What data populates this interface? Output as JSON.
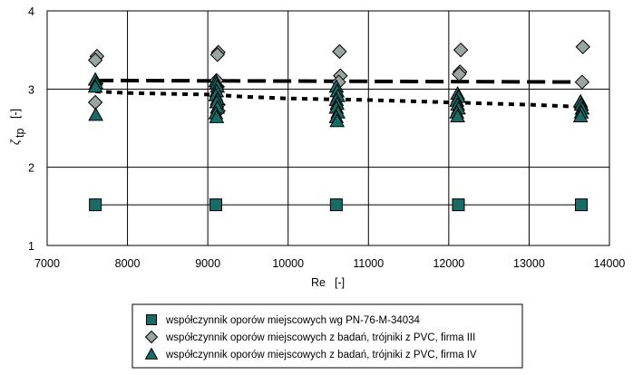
{
  "chart_data": {
    "type": "scatter",
    "xlabel": "Re",
    "xunit": "[-]",
    "ylabel": "ζ",
    "ylabel_sub": "tp",
    "yunit": "[-]",
    "xlim": [
      7000,
      14000
    ],
    "ylim": [
      1,
      4
    ],
    "xticks": [
      7000,
      8000,
      9000,
      10000,
      11000,
      12000,
      13000,
      14000
    ],
    "yticks": [
      1,
      2,
      3,
      4
    ],
    "grid": true,
    "legend_position": "bottom",
    "series": [
      {
        "name": "współczynnik oporów miejscowych wg PN-76-M-34034",
        "marker": "square",
        "color": "#1a6b66",
        "line": "solid",
        "points": [
          [
            7600,
            1.52
          ],
          [
            9100,
            1.52
          ],
          [
            10600,
            1.52
          ],
          [
            12120,
            1.52
          ],
          [
            13650,
            1.52
          ]
        ]
      },
      {
        "name": "współczynnik oporów miejscowych z badań, trójniki z PVC, firma III",
        "marker": "diamond",
        "color": "#9aa59f",
        "line": "dashed",
        "fit_line": [
          [
            7600,
            3.11
          ],
          [
            13700,
            3.09
          ]
        ],
        "points": [
          [
            7620,
            3.42
          ],
          [
            7600,
            3.37
          ],
          [
            7610,
            3.07
          ],
          [
            7600,
            2.83
          ],
          [
            9130,
            3.47
          ],
          [
            9120,
            3.44
          ],
          [
            9110,
            3.11
          ],
          [
            9120,
            3.03
          ],
          [
            9130,
            2.8
          ],
          [
            9130,
            2.72
          ],
          [
            10640,
            3.48
          ],
          [
            10650,
            3.17
          ],
          [
            10630,
            3.09
          ],
          [
            12150,
            3.5
          ],
          [
            12140,
            3.22
          ],
          [
            12130,
            3.19
          ],
          [
            13670,
            3.54
          ],
          [
            13660,
            3.09
          ]
        ]
      },
      {
        "name": "współczynnik oporów miejscowych z badań, trójniki z PVC, firma IV",
        "marker": "triangle",
        "color": "#1a6b66",
        "line": "dotted",
        "fit_line": [
          [
            7600,
            2.97
          ],
          [
            8000,
            2.95
          ],
          [
            9000,
            2.93
          ],
          [
            9500,
            2.9
          ],
          [
            10000,
            2.88
          ],
          [
            11000,
            2.86
          ],
          [
            12000,
            2.83
          ],
          [
            13000,
            2.8
          ],
          [
            13700,
            2.77
          ]
        ],
        "points": [
          [
            7600,
            3.12
          ],
          [
            7610,
            3.07
          ],
          [
            7600,
            3.03
          ],
          [
            7605,
            2.67
          ],
          [
            9100,
            3.1
          ],
          [
            9110,
            3.07
          ],
          [
            9120,
            3.03
          ],
          [
            9110,
            2.97
          ],
          [
            9100,
            2.92
          ],
          [
            9120,
            2.87
          ],
          [
            9110,
            2.83
          ],
          [
            9120,
            2.76
          ],
          [
            9100,
            2.69
          ],
          [
            9110,
            2.64
          ],
          [
            10600,
            3.03
          ],
          [
            10610,
            2.97
          ],
          [
            10620,
            2.91
          ],
          [
            10600,
            2.86
          ],
          [
            10610,
            2.81
          ],
          [
            10600,
            2.76
          ],
          [
            10620,
            2.7
          ],
          [
            10600,
            2.64
          ],
          [
            10610,
            2.59
          ],
          [
            12110,
            2.94
          ],
          [
            12120,
            2.9
          ],
          [
            12100,
            2.85
          ],
          [
            12110,
            2.8
          ],
          [
            12120,
            2.75
          ],
          [
            12100,
            2.7
          ],
          [
            12110,
            2.65
          ],
          [
            13640,
            2.84
          ],
          [
            13650,
            2.8
          ],
          [
            13660,
            2.75
          ],
          [
            13650,
            2.7
          ],
          [
            13640,
            2.65
          ]
        ]
      }
    ]
  }
}
